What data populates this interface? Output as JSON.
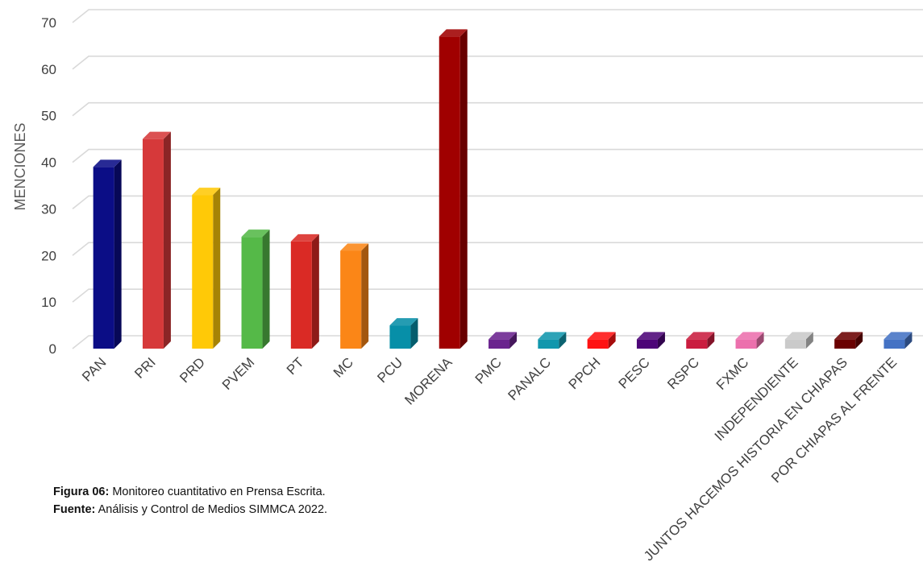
{
  "chart_data": {
    "type": "bar",
    "ylabel": "MENCIONES",
    "xlabel": "",
    "ylim": [
      0,
      70
    ],
    "yticks": [
      0,
      10,
      20,
      30,
      40,
      50,
      60,
      70
    ],
    "grid": true,
    "style": "3d-column",
    "categories": [
      "PAN",
      "PRI",
      "PRD",
      "PVEM",
      "PT",
      "MC",
      "PCU",
      "MORENA",
      "PMC",
      "PANALC",
      "PPCH",
      "PESC",
      "RSPC",
      "FXMC",
      "INDEPENDIENTE",
      "JUNTOS HACEMOS HISTORIA EN CHIAPAS",
      "POR CHIAPAS AL FRENTE"
    ],
    "values": [
      39,
      45,
      33,
      24,
      23,
      21,
      5,
      67,
      2,
      2,
      2,
      2,
      2,
      2,
      2,
      2,
      2
    ],
    "colors": [
      "#0b0d86",
      "#d6393a",
      "#ffc907",
      "#55b948",
      "#da2a25",
      "#fb8617",
      "#078fa8",
      "#a00000",
      "#6a238e",
      "#1197ad",
      "#ff1212",
      "#4d0578",
      "#ca1d3f",
      "#ec70ad",
      "#cacaca",
      "#6a0000",
      "#4472c4"
    ]
  },
  "caption": {
    "figure_label": "Figura 06:",
    "figure_text": " Monitoreo cuantitativo en Prensa Escrita.",
    "source_label": "Fuente:",
    "source_text": " Análisis y Control de Medios SIMMCA 2022."
  }
}
